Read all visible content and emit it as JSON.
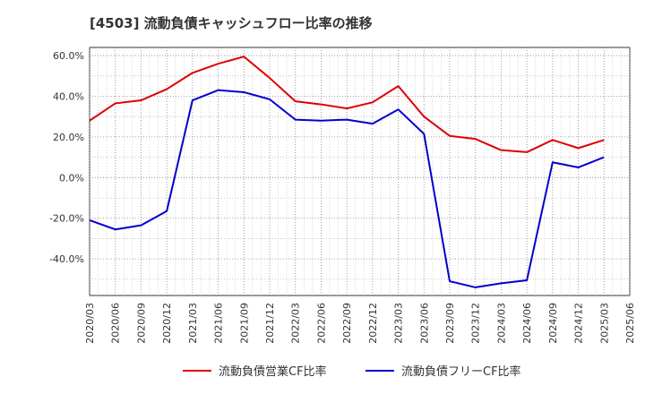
{
  "chart_data": {
    "type": "line",
    "title": "[4503]  流動負債キャッシュフロー比率の推移",
    "xlabel": "",
    "ylabel": "",
    "ylim": [
      -58,
      64
    ],
    "y_ticks": [
      60,
      40,
      20,
      0,
      -20,
      -40
    ],
    "y_tick_labels": [
      "60.0%",
      "40.0%",
      "20.0%",
      "0.0%",
      "-20.0%",
      "-40.0%"
    ],
    "grid": true,
    "legend_position": "bottom",
    "x_labels": [
      "2020/03",
      "2020/06",
      "2020/09",
      "2020/12",
      "2021/03",
      "2021/06",
      "2021/09",
      "2021/12",
      "2022/03",
      "2022/06",
      "2022/09",
      "2022/12",
      "2023/03",
      "2023/06",
      "2023/09",
      "2023/12",
      "2024/03",
      "2024/06",
      "2024/09",
      "2024/12",
      "2025/03",
      "2025/06"
    ],
    "series": [
      {
        "name": "流動負債営業CF比率",
        "color": "#dd0000",
        "values": [
          28.0,
          36.5,
          38.0,
          43.5,
          51.5,
          56.0,
          59.5,
          49.0,
          37.5,
          36.0,
          34.0,
          37.0,
          45.0,
          30.0,
          20.5,
          19.0,
          13.5,
          12.5,
          18.5,
          14.5,
          18.5,
          null
        ]
      },
      {
        "name": "流動負債フリーCF比率",
        "color": "#0000cc",
        "values": [
          -21.0,
          -25.5,
          -23.5,
          -16.5,
          38.0,
          43.0,
          42.0,
          38.5,
          28.5,
          28.0,
          28.5,
          26.5,
          33.5,
          21.5,
          -51.0,
          -54.0,
          -52.0,
          -50.5,
          7.5,
          5.0,
          10.0,
          null
        ]
      }
    ]
  }
}
